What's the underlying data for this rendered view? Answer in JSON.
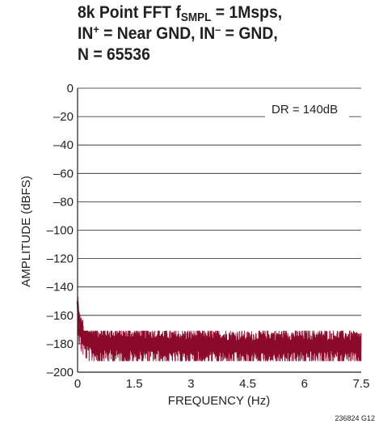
{
  "chart_data": {
    "type": "line",
    "title": {
      "line1_pre": "8k Point FFT f",
      "line1_sub": "SMPL",
      "line1_post": " = 1Msps,",
      "line2_a": "IN",
      "line2_sup1": "+",
      "line2_b": " = Near GND, IN",
      "line2_sup2": "–",
      "line2_c": " = GND,",
      "line3": "N = 65536"
    },
    "xlabel": "FREQUENCY (Hz)",
    "ylabel": "AMPLITUDE (dBFS)",
    "xlim": [
      0,
      7.5
    ],
    "ylim": [
      -200,
      0
    ],
    "xticks": [
      "0",
      "1.5",
      "3",
      "4.5",
      "6",
      "7.5"
    ],
    "xtick_values": [
      0,
      1.5,
      3,
      4.5,
      6,
      7.5
    ],
    "yticks": [
      "0",
      "–20",
      "–40",
      "–60",
      "–80",
      "–100",
      "–120",
      "–140",
      "–160",
      "–180",
      "–200"
    ],
    "ytick_values": [
      0,
      -20,
      -40,
      -60,
      -80,
      -100,
      -120,
      -140,
      -160,
      -180,
      -200
    ],
    "grid": "horizontal",
    "annotation": "DR = 140dB",
    "series": [
      {
        "color": "#8b0a2a",
        "x": [
          0,
          0.02,
          0.05,
          0.1,
          0.2,
          0.3,
          0.5,
          1,
          1.5,
          2,
          2.5,
          3,
          3.5,
          4,
          4.5,
          5,
          5.5,
          6,
          6.5,
          7,
          7.5
        ],
        "y": [
          -150,
          -160,
          -168,
          -172,
          -176,
          -178,
          -179,
          -180,
          -180,
          -180,
          -181,
          -181,
          -181,
          -181,
          -182,
          -181,
          -181,
          -181,
          -181,
          -181,
          -182
        ],
        "band_low": -192,
        "band_high": -171
      }
    ]
  },
  "figure_code": "236824 G12"
}
